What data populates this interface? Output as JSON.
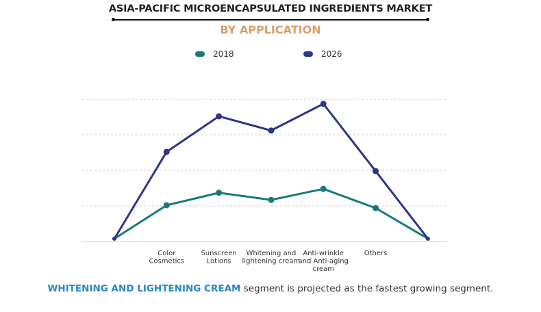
{
  "title": "ASIA-PACIFIC MICROENCAPSULATED INGREDIENTS MARKET",
  "subtitle": "BY APPLICATION",
  "footer": {
    "highlight": "WHITENING AND LIGHTENING CREAM",
    "text": " segment is projected as the fastest growing segment."
  },
  "colors": {
    "series_2018": "#177a78",
    "series_2026": "#2e3586",
    "subtitle": "#d99f68",
    "highlight": "#2a86c5"
  },
  "chart_data": {
    "type": "line",
    "title": "ASIA-PACIFIC MICROENCAPSULATED INGREDIENTS MARKET",
    "subtitle": "BY APPLICATION",
    "categories": [
      "",
      "Color Cosmetics",
      "Sunscreen Lotions",
      "Whitening and lightening cream",
      "Anti-wrinkle and Anti-aging cream",
      "Others",
      ""
    ],
    "category_label_lines": [
      [],
      [
        "Color",
        "Cosmetics"
      ],
      [
        "Sunscreen",
        "Lotions"
      ],
      [
        "Whitening and",
        "lightening cream"
      ],
      [
        "Anti-wrinkle",
        "and Anti-aging",
        "cream"
      ],
      [
        "Others"
      ],
      []
    ],
    "series": [
      {
        "name": "2018",
        "values": [
          0.08,
          1.02,
          1.37,
          1.17,
          1.48,
          0.94,
          0.08
        ]
      },
      {
        "name": "2026",
        "values": [
          0.08,
          2.52,
          3.52,
          3.12,
          3.87,
          1.98,
          0.08
        ]
      }
    ],
    "ylim": [
      0,
      4
    ],
    "y_tick_labels_shown": false,
    "grid": true,
    "legend": "top-center",
    "xlabel": "",
    "ylabel": ""
  }
}
